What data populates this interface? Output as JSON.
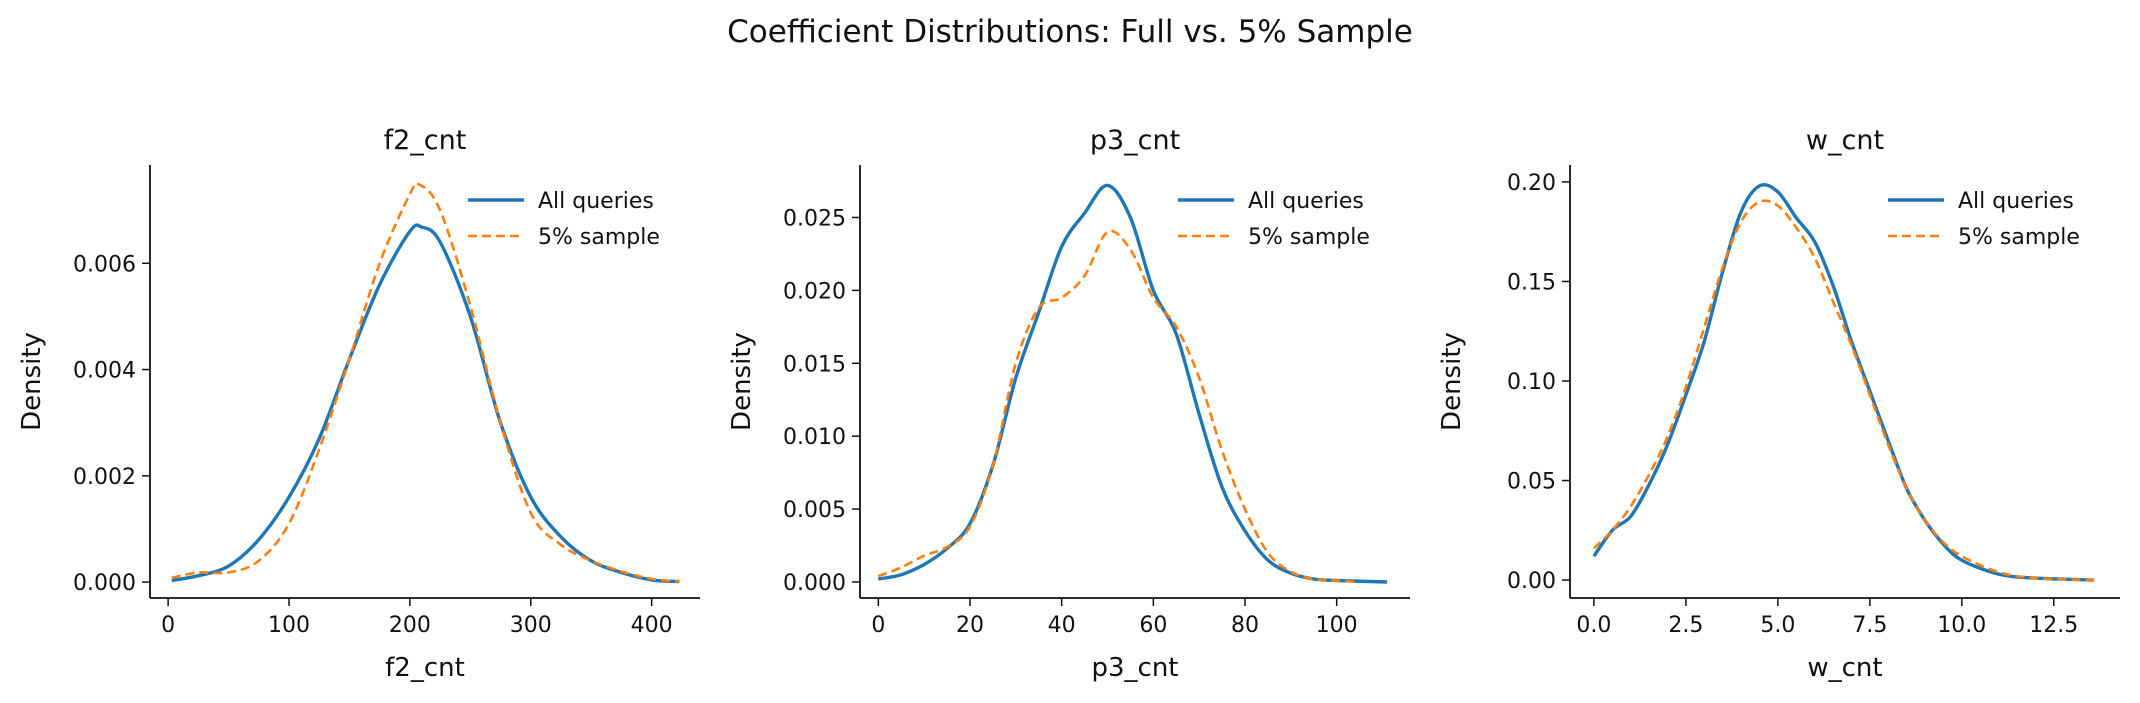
{
  "figure": {
    "suptitle": "Coefficient Distributions: Full vs. 5% Sample"
  },
  "colors": {
    "all": "#1f77b4",
    "sample": "#ff7f0e",
    "axis": "#111111"
  },
  "chart_data": [
    {
      "type": "line",
      "title": "f2_cnt",
      "xlabel": "f2_cnt",
      "ylabel": "Density",
      "xlim": [
        -15,
        440
      ],
      "ylim": [
        -0.0003,
        0.00785
      ],
      "xticks": [
        0,
        100,
        200,
        300,
        400
      ],
      "xtick_labels": [
        "0",
        "100",
        "200",
        "300",
        "400"
      ],
      "yticks": [
        0.0,
        0.002,
        0.004,
        0.006
      ],
      "ytick_labels": [
        "0.000",
        "0.002",
        "0.004",
        "0.006"
      ],
      "legend": "top-right",
      "series": [
        {
          "name": "All queries",
          "style": "solid",
          "x": [
            3,
            25,
            50,
            75,
            100,
            125,
            150,
            175,
            200,
            210,
            225,
            250,
            275,
            300,
            325,
            350,
            375,
            400,
            423
          ],
          "y": [
            3e-05,
            0.00012,
            0.0003,
            0.0008,
            0.0016,
            0.0027,
            0.0042,
            0.0056,
            0.0066,
            0.00668,
            0.0064,
            0.005,
            0.003,
            0.0016,
            0.00085,
            0.0004,
            0.00018,
            4e-05,
            1e-05
          ]
        },
        {
          "name": "5% sample",
          "style": "dashed",
          "x": [
            3,
            25,
            50,
            75,
            100,
            125,
            150,
            175,
            200,
            208,
            225,
            250,
            275,
            300,
            325,
            350,
            375,
            400,
            423
          ],
          "y": [
            8e-05,
            0.00018,
            0.00018,
            0.0004,
            0.0011,
            0.0025,
            0.0042,
            0.006,
            0.0073,
            0.00748,
            0.007,
            0.0052,
            0.003,
            0.0013,
            0.0007,
            0.0004,
            0.0002,
            6e-05,
            1e-05
          ]
        }
      ]
    },
    {
      "type": "line",
      "title": "p3_cnt",
      "xlabel": "p3_cnt",
      "ylabel": "Density",
      "xlim": [
        -4,
        116
      ],
      "ylim": [
        -0.0011,
        0.0286
      ],
      "xticks": [
        0,
        20,
        40,
        60,
        80,
        100
      ],
      "xtick_labels": [
        "0",
        "20",
        "40",
        "60",
        "80",
        "100"
      ],
      "yticks": [
        0.0,
        0.005,
        0.01,
        0.015,
        0.02,
        0.025
      ],
      "ytick_labels": [
        "0.000",
        "0.005",
        "0.010",
        "0.015",
        "0.020",
        "0.025"
      ],
      "legend": "top-right",
      "series": [
        {
          "name": "All queries",
          "style": "solid",
          "x": [
            0,
            5,
            10,
            15,
            20,
            25,
            30,
            35,
            40,
            45,
            50,
            55,
            60,
            65,
            70,
            75,
            80,
            85,
            90,
            95,
            100,
            111
          ],
          "y": [
            0.0002,
            0.0005,
            0.0012,
            0.0023,
            0.004,
            0.008,
            0.014,
            0.0185,
            0.023,
            0.0253,
            0.0272,
            0.025,
            0.02,
            0.017,
            0.0115,
            0.0065,
            0.0035,
            0.0015,
            0.0006,
            0.0002,
            0.0001,
            0.0
          ]
        },
        {
          "name": "5% sample",
          "style": "dashed",
          "x": [
            0,
            5,
            10,
            15,
            20,
            25,
            30,
            35,
            40,
            45,
            50,
            55,
            60,
            65,
            70,
            75,
            80,
            85,
            90,
            95,
            100,
            105
          ],
          "y": [
            0.0004,
            0.001,
            0.0018,
            0.0024,
            0.0038,
            0.008,
            0.015,
            0.0188,
            0.0195,
            0.021,
            0.024,
            0.0228,
            0.0195,
            0.0175,
            0.014,
            0.009,
            0.005,
            0.002,
            0.0007,
            0.0002,
            0.0001,
            0.0
          ]
        }
      ]
    },
    {
      "type": "line",
      "title": "w_cnt",
      "xlabel": "w_cnt",
      "ylabel": "Density",
      "xlim": [
        -0.65,
        14.3
      ],
      "ylim": [
        -0.009,
        0.2085
      ],
      "xticks": [
        0.0,
        2.5,
        5.0,
        7.5,
        10.0,
        12.5
      ],
      "xtick_labels": [
        "0.0",
        "2.5",
        "5.0",
        "7.5",
        "10.0",
        "12.5"
      ],
      "yticks": [
        0.0,
        0.05,
        0.1,
        0.15,
        0.2
      ],
      "ytick_labels": [
        "0.00",
        "0.05",
        "0.10",
        "0.15",
        "0.20"
      ],
      "legend": "top-right",
      "series": [
        {
          "name": "All queries",
          "style": "solid",
          "x": [
            0.0,
            0.5,
            1.0,
            1.5,
            2.0,
            2.5,
            3.0,
            3.5,
            4.0,
            4.5,
            5.0,
            5.5,
            6.0,
            6.5,
            7.0,
            7.5,
            8.0,
            8.5,
            9.0,
            9.5,
            10.0,
            11.0,
            12.0,
            13.6
          ],
          "y": [
            0.012,
            0.025,
            0.032,
            0.048,
            0.068,
            0.093,
            0.12,
            0.155,
            0.185,
            0.198,
            0.195,
            0.182,
            0.17,
            0.148,
            0.12,
            0.095,
            0.07,
            0.046,
            0.03,
            0.018,
            0.01,
            0.003,
            0.001,
            0.0
          ]
        },
        {
          "name": "5% sample",
          "style": "dashed",
          "x": [
            0.0,
            0.5,
            1.0,
            1.5,
            2.0,
            2.5,
            3.0,
            3.5,
            4.0,
            4.5,
            5.0,
            5.5,
            6.0,
            6.5,
            7.0,
            7.5,
            8.0,
            8.5,
            9.0,
            9.5,
            10.0,
            11.0,
            12.0,
            13.6
          ],
          "y": [
            0.016,
            0.025,
            0.037,
            0.053,
            0.072,
            0.097,
            0.127,
            0.157,
            0.18,
            0.19,
            0.188,
            0.177,
            0.162,
            0.14,
            0.118,
            0.093,
            0.068,
            0.046,
            0.03,
            0.019,
            0.012,
            0.004,
            0.001,
            0.0
          ]
        }
      ]
    }
  ]
}
